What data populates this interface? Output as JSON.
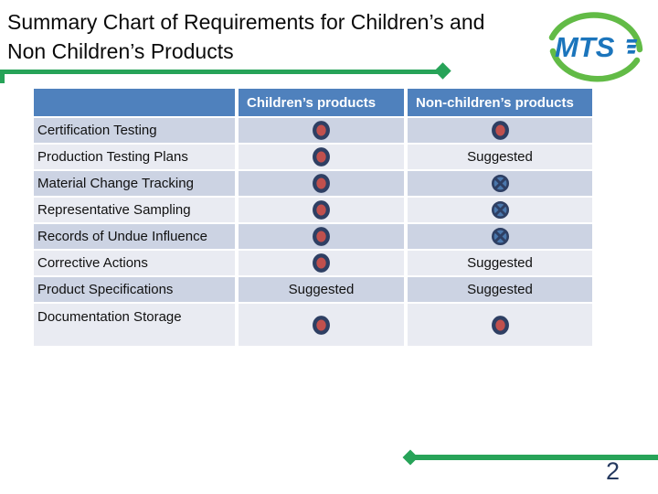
{
  "slide": {
    "title_line1": "Summary Chart of Requirements for Children’s and",
    "title_line2": "Non Children’s Products",
    "page_number": "2"
  },
  "logo": {
    "text": "MTS",
    "blue": "#1B75BC",
    "green": "#62BB46"
  },
  "colors": {
    "header_blue": "#4F81BD",
    "row_dark": "#CCD3E3",
    "row_light": "#E9EBF2",
    "accent_green": "#27A358",
    "dot_red": "#C0504D",
    "icon_navy": "#2E3F63",
    "icon_blue": "#4A77AC",
    "page_number_color": "#25395F"
  },
  "table": {
    "columns": [
      "",
      "Children’s products",
      "Non-children’s products"
    ],
    "icon_legend": {
      "dot": "filled-dot-icon (required)",
      "cross": "crossed-circle-icon (not required)"
    },
    "rows": [
      {
        "label": "Certification Testing",
        "children": "dot",
        "non_children": "dot"
      },
      {
        "label": "Production Testing Plans",
        "children": "dot",
        "non_children": "Suggested"
      },
      {
        "label": "Material Change Tracking",
        "children": "dot",
        "non_children": "cross"
      },
      {
        "label": "Representative Sampling",
        "children": "dot",
        "non_children": "cross"
      },
      {
        "label": "Records of Undue Influence",
        "children": "dot",
        "non_children": "cross"
      },
      {
        "label": "Corrective Actions",
        "children": "dot",
        "non_children": "Suggested"
      },
      {
        "label": "Product Specifications",
        "children": "Suggested",
        "non_children": "Suggested"
      },
      {
        "label": "Documentation Storage",
        "children": "dot",
        "non_children": "dot"
      }
    ]
  }
}
